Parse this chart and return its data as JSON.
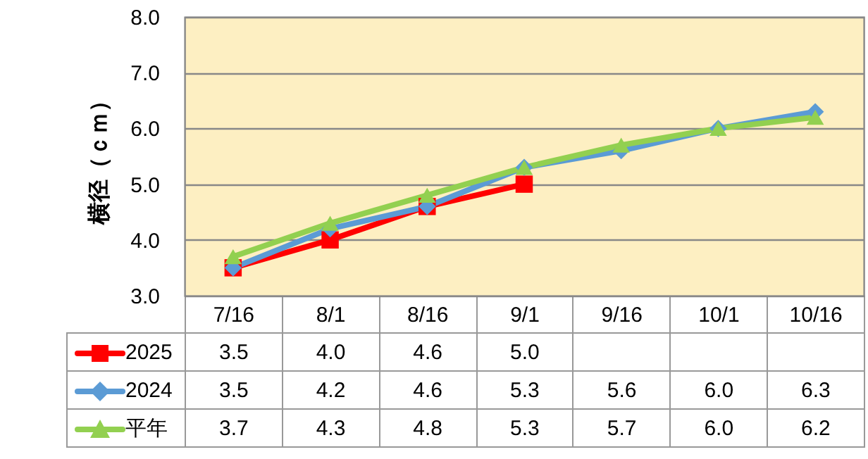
{
  "chart_data": {
    "type": "line",
    "ylabel": "横径（ｃｍ）",
    "categories": [
      "7/16",
      "8/1",
      "8/16",
      "9/1",
      "9/16",
      "10/1",
      "10/16"
    ],
    "series": [
      {
        "name": "2025",
        "color": "#ff0000",
        "marker": "square",
        "values": [
          3.5,
          4.0,
          4.6,
          5.0,
          null,
          null,
          null
        ],
        "value_labels": [
          "3.5",
          "4.0",
          "4.6",
          "5.0",
          null,
          null,
          null
        ]
      },
      {
        "name": "2024",
        "color": "#5b9bd5",
        "marker": "diamond",
        "values": [
          3.5,
          4.2,
          4.6,
          5.3,
          5.6,
          6.0,
          6.3
        ],
        "value_labels": [
          "3.5",
          "4.2",
          "4.6",
          "5.3",
          "5.6",
          "6.0",
          "6.3"
        ]
      },
      {
        "name": "平年",
        "color": "#92d050",
        "marker": "triangle",
        "values": [
          3.7,
          4.3,
          4.8,
          5.3,
          5.7,
          6.0,
          6.2
        ],
        "value_labels": [
          "3.7",
          "4.3",
          "4.8",
          "5.3",
          "5.7",
          "6.0",
          "6.2"
        ]
      }
    ],
    "ylim": [
      3.0,
      8.0
    ],
    "yticks": [
      {
        "value": 3,
        "label": "3.0"
      },
      {
        "value": 4,
        "label": "4.0"
      },
      {
        "value": 5,
        "label": "5.0"
      },
      {
        "value": 6,
        "label": "6.0"
      },
      {
        "value": 7,
        "label": "7.0"
      },
      {
        "value": 8,
        "label": "8.0"
      }
    ],
    "grid": "y",
    "legend": "bottom left"
  }
}
